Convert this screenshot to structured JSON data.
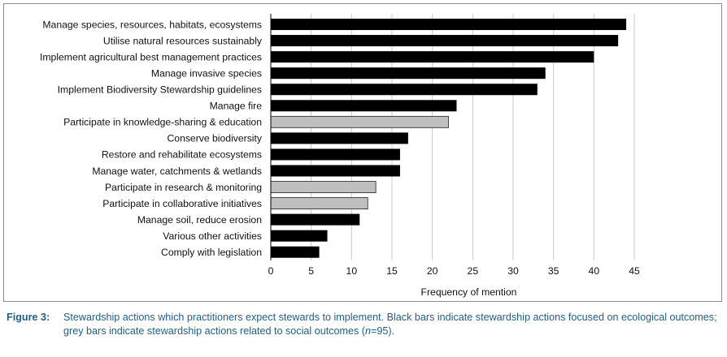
{
  "chart_data": {
    "type": "bar",
    "orientation": "horizontal",
    "categories": [
      "Manage species, resources, habitats, ecosystems",
      "Utilise natural resources sustainably",
      "Implement agricultural best management practices",
      "Manage invasive species",
      "Implement Biodiversity Stewardship guidelines",
      "Manage fire",
      "Participate in knowledge-sharing & education",
      "Conserve biodiversity",
      "Restore and rehabilitate ecosystems",
      "Manage water, catchments & wetlands",
      "Participate in research & monitoring",
      "Participate in collaborative initiatives",
      "Manage soil, reduce erosion",
      "Various other activities",
      "Comply with legislation"
    ],
    "values": [
      44,
      43,
      40,
      34,
      33,
      23,
      22,
      17,
      16,
      16,
      13,
      12,
      11,
      7,
      6
    ],
    "bar_groups": [
      "ecological",
      "ecological",
      "ecological",
      "ecological",
      "ecological",
      "ecological",
      "social",
      "ecological",
      "ecological",
      "ecological",
      "social",
      "social",
      "ecological",
      "ecological",
      "ecological"
    ],
    "colors": {
      "ecological": "#000000",
      "social": "#bfbfbf",
      "gridline": "#c8c8c8"
    },
    "xlabel": "Frequency of mention",
    "ylabel": "",
    "title": "",
    "xlim": [
      0,
      45
    ],
    "xticks": [
      0,
      5,
      10,
      15,
      20,
      25,
      30,
      35,
      40,
      45
    ],
    "grid": "vertical gridlines"
  },
  "caption": {
    "label": "Figure 3:",
    "line1": "Stewardship actions which practitioners expect stewards to implement. Black bars indicate stewardship actions focused on ecological outcomes;",
    "line2_pre": "grey bars indicate stewardship actions related to social outcomes (",
    "line2_n": "n",
    "line2_post": "=95)."
  }
}
